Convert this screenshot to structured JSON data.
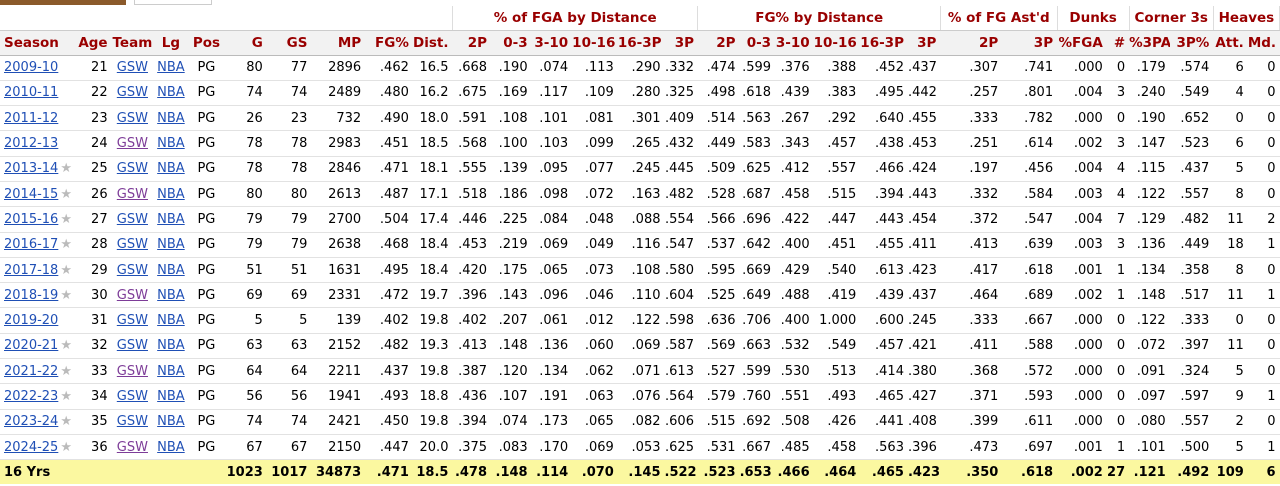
{
  "tabs": [
    "",
    ""
  ],
  "groups": {
    "fga_dist": "% of FGA by Distance",
    "fgp_dist": "FG% by Distance",
    "ast": "% of FG Ast'd",
    "dunks": "Dunks",
    "corner": "Corner 3s",
    "heaves": "Heaves"
  },
  "headers": [
    "Season",
    "Age",
    "Team",
    "Lg",
    "Pos",
    "G",
    "GS",
    "MP",
    "FG%",
    "Dist.",
    "2P",
    "0-3",
    "3-10",
    "10-16",
    "16-3P",
    "3P",
    "2P",
    "0-3",
    "3-10",
    "10-16",
    "16-3P",
    "3P",
    "2P",
    "3P",
    "%FGA",
    "#",
    "%3PA",
    "3P%",
    "Att.",
    "Md."
  ],
  "rows": [
    {
      "season": "2009-10",
      "star": false,
      "teamVisited": false,
      "cells": [
        "21",
        "GSW",
        "NBA",
        "PG",
        "80",
        "77",
        "2896",
        ".462",
        "16.5",
        ".668",
        ".190",
        ".074",
        ".113",
        ".290",
        ".332",
        ".474",
        ".599",
        ".376",
        ".388",
        ".452",
        ".437",
        ".307",
        ".741",
        ".000",
        "0",
        ".179",
        ".574",
        "6",
        "0"
      ]
    },
    {
      "season": "2010-11",
      "star": false,
      "teamVisited": false,
      "cells": [
        "22",
        "GSW",
        "NBA",
        "PG",
        "74",
        "74",
        "2489",
        ".480",
        "16.2",
        ".675",
        ".169",
        ".117",
        ".109",
        ".280",
        ".325",
        ".498",
        ".618",
        ".439",
        ".383",
        ".495",
        ".442",
        ".257",
        ".801",
        ".004",
        "3",
        ".240",
        ".549",
        "4",
        "0"
      ]
    },
    {
      "season": "2011-12",
      "star": false,
      "teamVisited": false,
      "cells": [
        "23",
        "GSW",
        "NBA",
        "PG",
        "26",
        "23",
        "732",
        ".490",
        "18.0",
        ".591",
        ".108",
        ".101",
        ".081",
        ".301",
        ".409",
        ".514",
        ".563",
        ".267",
        ".292",
        ".640",
        ".455",
        ".333",
        ".782",
        ".000",
        "0",
        ".190",
        ".652",
        "0",
        "0"
      ]
    },
    {
      "season": "2012-13",
      "star": false,
      "teamVisited": true,
      "cells": [
        "24",
        "GSW",
        "NBA",
        "PG",
        "78",
        "78",
        "2983",
        ".451",
        "18.5",
        ".568",
        ".100",
        ".103",
        ".099",
        ".265",
        ".432",
        ".449",
        ".583",
        ".343",
        ".457",
        ".438",
        ".453",
        ".251",
        ".614",
        ".002",
        "3",
        ".147",
        ".523",
        "6",
        "0"
      ]
    },
    {
      "season": "2013-14",
      "star": true,
      "teamVisited": false,
      "cells": [
        "25",
        "GSW",
        "NBA",
        "PG",
        "78",
        "78",
        "2846",
        ".471",
        "18.1",
        ".555",
        ".139",
        ".095",
        ".077",
        ".245",
        ".445",
        ".509",
        ".625",
        ".412",
        ".557",
        ".466",
        ".424",
        ".197",
        ".456",
        ".004",
        "4",
        ".115",
        ".437",
        "5",
        "0"
      ]
    },
    {
      "season": "2014-15",
      "star": true,
      "teamVisited": true,
      "cells": [
        "26",
        "GSW",
        "NBA",
        "PG",
        "80",
        "80",
        "2613",
        ".487",
        "17.1",
        ".518",
        ".186",
        ".098",
        ".072",
        ".163",
        ".482",
        ".528",
        ".687",
        ".458",
        ".515",
        ".394",
        ".443",
        ".332",
        ".584",
        ".003",
        "4",
        ".122",
        ".557",
        "8",
        "0"
      ]
    },
    {
      "season": "2015-16",
      "star": true,
      "teamVisited": false,
      "cells": [
        "27",
        "GSW",
        "NBA",
        "PG",
        "79",
        "79",
        "2700",
        ".504",
        "17.4",
        ".446",
        ".225",
        ".084",
        ".048",
        ".088",
        ".554",
        ".566",
        ".696",
        ".422",
        ".447",
        ".443",
        ".454",
        ".372",
        ".547",
        ".004",
        "7",
        ".129",
        ".482",
        "11",
        "2"
      ]
    },
    {
      "season": "2016-17",
      "star": true,
      "teamVisited": false,
      "cells": [
        "28",
        "GSW",
        "NBA",
        "PG",
        "79",
        "79",
        "2638",
        ".468",
        "18.4",
        ".453",
        ".219",
        ".069",
        ".049",
        ".116",
        ".547",
        ".537",
        ".642",
        ".400",
        ".451",
        ".455",
        ".411",
        ".413",
        ".639",
        ".003",
        "3",
        ".136",
        ".449",
        "18",
        "1"
      ]
    },
    {
      "season": "2017-18",
      "star": true,
      "teamVisited": false,
      "cells": [
        "29",
        "GSW",
        "NBA",
        "PG",
        "51",
        "51",
        "1631",
        ".495",
        "18.4",
        ".420",
        ".175",
        ".065",
        ".073",
        ".108",
        ".580",
        ".595",
        ".669",
        ".429",
        ".540",
        ".613",
        ".423",
        ".417",
        ".618",
        ".001",
        "1",
        ".134",
        ".358",
        "8",
        "0"
      ]
    },
    {
      "season": "2018-19",
      "star": true,
      "teamVisited": true,
      "cells": [
        "30",
        "GSW",
        "NBA",
        "PG",
        "69",
        "69",
        "2331",
        ".472",
        "19.7",
        ".396",
        ".143",
        ".096",
        ".046",
        ".110",
        ".604",
        ".525",
        ".649",
        ".488",
        ".419",
        ".439",
        ".437",
        ".464",
        ".689",
        ".002",
        "1",
        ".148",
        ".517",
        "11",
        "1"
      ]
    },
    {
      "season": "2019-20",
      "star": false,
      "teamVisited": false,
      "cells": [
        "31",
        "GSW",
        "NBA",
        "PG",
        "5",
        "5",
        "139",
        ".402",
        "19.8",
        ".402",
        ".207",
        ".061",
        ".012",
        ".122",
        ".598",
        ".636",
        ".706",
        ".400",
        "1.000",
        ".600",
        ".245",
        ".333",
        ".667",
        ".000",
        "0",
        ".122",
        ".333",
        "0",
        "0"
      ]
    },
    {
      "season": "2020-21",
      "star": true,
      "teamVisited": false,
      "cells": [
        "32",
        "GSW",
        "NBA",
        "PG",
        "63",
        "63",
        "2152",
        ".482",
        "19.3",
        ".413",
        ".148",
        ".136",
        ".060",
        ".069",
        ".587",
        ".569",
        ".663",
        ".532",
        ".549",
        ".457",
        ".421",
        ".411",
        ".588",
        ".000",
        "0",
        ".072",
        ".397",
        "11",
        "0"
      ]
    },
    {
      "season": "2021-22",
      "star": true,
      "teamVisited": true,
      "cells": [
        "33",
        "GSW",
        "NBA",
        "PG",
        "64",
        "64",
        "2211",
        ".437",
        "19.8",
        ".387",
        ".120",
        ".134",
        ".062",
        ".071",
        ".613",
        ".527",
        ".599",
        ".530",
        ".513",
        ".414",
        ".380",
        ".368",
        ".572",
        ".000",
        "0",
        ".091",
        ".324",
        "5",
        "0"
      ]
    },
    {
      "season": "2022-23",
      "star": true,
      "teamVisited": false,
      "cells": [
        "34",
        "GSW",
        "NBA",
        "PG",
        "56",
        "56",
        "1941",
        ".493",
        "18.8",
        ".436",
        ".107",
        ".191",
        ".063",
        ".076",
        ".564",
        ".579",
        ".760",
        ".551",
        ".493",
        ".465",
        ".427",
        ".371",
        ".593",
        ".000",
        "0",
        ".097",
        ".597",
        "9",
        "1"
      ]
    },
    {
      "season": "2023-24",
      "star": true,
      "teamVisited": false,
      "cells": [
        "35",
        "GSW",
        "NBA",
        "PG",
        "74",
        "74",
        "2421",
        ".450",
        "19.8",
        ".394",
        ".074",
        ".173",
        ".065",
        ".082",
        ".606",
        ".515",
        ".692",
        ".508",
        ".426",
        ".441",
        ".408",
        ".399",
        ".611",
        ".000",
        "0",
        ".080",
        ".557",
        "2",
        "0"
      ]
    },
    {
      "season": "2024-25",
      "star": true,
      "teamVisited": true,
      "cells": [
        "36",
        "GSW",
        "NBA",
        "PG",
        "67",
        "67",
        "2150",
        ".447",
        "20.0",
        ".375",
        ".083",
        ".170",
        ".069",
        ".053",
        ".625",
        ".531",
        ".667",
        ".485",
        ".458",
        ".563",
        ".396",
        ".473",
        ".697",
        ".001",
        "1",
        ".101",
        ".500",
        "5",
        "1"
      ]
    }
  ],
  "footer": {
    "label": "16 Yrs",
    "cells": [
      "",
      "",
      "",
      "",
      "1023",
      "1017",
      "34873",
      ".471",
      "18.5",
      ".478",
      ".148",
      ".114",
      ".070",
      ".145",
      ".522",
      ".523",
      ".653",
      ".466",
      ".464",
      ".465",
      ".423",
      ".350",
      ".618",
      ".002",
      "27",
      ".121",
      ".492",
      "109",
      "6"
    ]
  },
  "colors": {
    "header_text": "#990000",
    "link": "#1f4fb5",
    "link_visited": "#7d3c98",
    "footer_bg": "#fbf8a0",
    "tab_active": "#8b5a2b"
  }
}
